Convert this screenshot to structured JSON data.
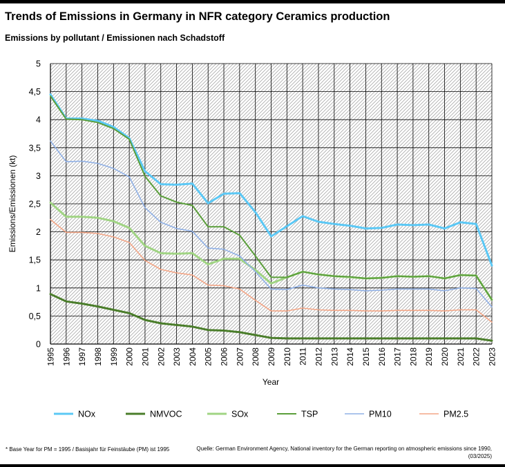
{
  "header": {
    "title": "Trends of Emissions in Germany in NFR category Ceramics production",
    "subtitle": "Emissions by pollutant / Emissionen nach Schadstoff"
  },
  "footer": {
    "note": "* Base Year for PM = 1995 / Basisjahr für Feinstäube (PM) ist 1995",
    "source": "Quelle: German Environment Agency, National inventory for the German reporting on atmospheric emissions since 1990, (03/2025)"
  },
  "chart_data": {
    "type": "line",
    "xlabel": "Year",
    "ylabel": "Emissions/Emissionen (kt)",
    "ylim": [
      0,
      5
    ],
    "yticks": [
      0,
      0.5,
      1,
      1.5,
      2,
      2.5,
      3,
      3.5,
      4,
      4.5,
      5
    ],
    "ytick_labels": [
      "0",
      "0,5",
      "1",
      "1,5",
      "2",
      "2,5",
      "3",
      "3,5",
      "4",
      "4,5",
      "5"
    ],
    "grid": true,
    "legend_position": "bottom",
    "x": [
      "1995",
      "1996",
      "1997",
      "1998",
      "1999",
      "2000",
      "2001",
      "2002",
      "2003",
      "2004",
      "2005",
      "2006",
      "2007",
      "2008",
      "2009",
      "2010",
      "2011",
      "2012",
      "2013",
      "2014",
      "2015",
      "2016",
      "2017",
      "2018",
      "2019",
      "2020",
      "2021",
      "2022",
      "2023"
    ],
    "series": [
      {
        "name": "NOx",
        "color": "#5bc8f5",
        "width": 3,
        "values": [
          4.45,
          4.02,
          4.02,
          3.98,
          3.87,
          3.67,
          3.08,
          2.85,
          2.84,
          2.86,
          2.51,
          2.68,
          2.69,
          2.35,
          1.92,
          2.1,
          2.28,
          2.18,
          2.14,
          2.11,
          2.06,
          2.07,
          2.13,
          2.12,
          2.13,
          2.06,
          2.17,
          2.14,
          1.4
        ]
      },
      {
        "name": "NMVOC",
        "color": "#4a7d2a",
        "width": 3,
        "values": [
          0.89,
          0.76,
          0.72,
          0.67,
          0.61,
          0.55,
          0.43,
          0.37,
          0.34,
          0.31,
          0.25,
          0.24,
          0.21,
          0.16,
          0.11,
          0.1,
          0.1,
          0.1,
          0.1,
          0.1,
          0.1,
          0.1,
          0.1,
          0.1,
          0.1,
          0.1,
          0.1,
          0.1,
          0.06
        ]
      },
      {
        "name": "SOx",
        "color": "#a0d483",
        "width": 3,
        "values": [
          2.52,
          2.27,
          2.27,
          2.25,
          2.19,
          2.07,
          1.75,
          1.62,
          1.61,
          1.62,
          1.42,
          1.52,
          1.52,
          1.32,
          1.08,
          1.19,
          1.29,
          1.24,
          1.21,
          1.19,
          1.17,
          1.18,
          1.21,
          1.2,
          1.21,
          1.17,
          1.23,
          1.22,
          0.79
        ]
      },
      {
        "name": "TSP",
        "color": "#5a9e3a",
        "width": 2,
        "values": [
          4.42,
          4.01,
          4.0,
          3.95,
          3.84,
          3.65,
          2.99,
          2.64,
          2.53,
          2.47,
          2.09,
          2.09,
          1.94,
          1.57,
          1.19,
          1.19,
          1.29,
          1.24,
          1.21,
          1.2,
          1.17,
          1.18,
          1.21,
          1.2,
          1.21,
          1.17,
          1.23,
          1.22,
          0.79
        ]
      },
      {
        "name": "PM10",
        "color": "#8fb0e6",
        "width": 1.6,
        "values": [
          3.62,
          3.25,
          3.26,
          3.22,
          3.13,
          2.98,
          2.43,
          2.17,
          2.06,
          2.01,
          1.71,
          1.69,
          1.57,
          1.29,
          0.98,
          0.97,
          1.05,
          1.0,
          0.98,
          0.97,
          0.95,
          0.96,
          0.98,
          0.98,
          0.98,
          0.95,
          1.0,
          0.99,
          0.66
        ]
      },
      {
        "name": "PM2.5",
        "color": "#f4a585",
        "width": 1.6,
        "values": [
          2.22,
          1.99,
          1.99,
          1.97,
          1.91,
          1.81,
          1.49,
          1.33,
          1.27,
          1.23,
          1.05,
          1.04,
          0.98,
          0.78,
          0.59,
          0.59,
          0.64,
          0.61,
          0.6,
          0.6,
          0.59,
          0.59,
          0.6,
          0.6,
          0.6,
          0.59,
          0.61,
          0.61,
          0.39
        ]
      }
    ]
  }
}
